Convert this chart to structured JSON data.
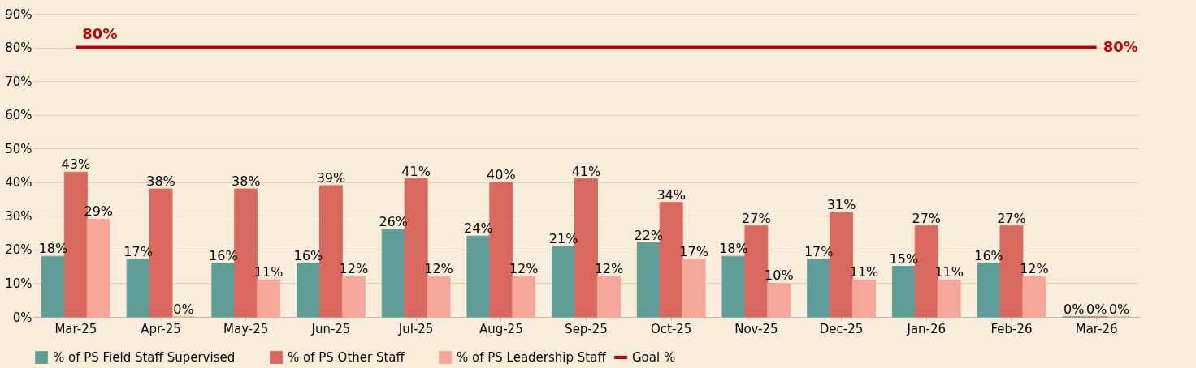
{
  "chart_data": {
    "type": "bar",
    "categories": [
      "Mar-25",
      "Apr-25",
      "May-25",
      "Jun-25",
      "Jul-25",
      "Aug-25",
      "Sep-25",
      "Oct-25",
      "Nov-25",
      "Dec-25",
      "Jan-26",
      "Feb-26",
      "Mar-26"
    ],
    "series": [
      {
        "name": "% of PS Field Staff Supervised",
        "color": "#5f9e98",
        "values": [
          18,
          17,
          16,
          16,
          26,
          24,
          21,
          22,
          18,
          17,
          15,
          16,
          0
        ],
        "value_labels": [
          "18%",
          "17%",
          "16%",
          "16%",
          "26%",
          "24%",
          "21%",
          "22%",
          "18%",
          "17%",
          "15%",
          "16%",
          "0%"
        ]
      },
      {
        "name": "% of PS Other Staff",
        "color": "#d9695f",
        "values": [
          43,
          38,
          38,
          39,
          41,
          40,
          41,
          34,
          27,
          31,
          27,
          27,
          0
        ],
        "value_labels": [
          "43%",
          "38%",
          "38%",
          "39%",
          "41%",
          "40%",
          "41%",
          "34%",
          "27%",
          "31%",
          "27%",
          "27%",
          "0%"
        ]
      },
      {
        "name": "% of PS Leadership Staff",
        "color": "#f4a799",
        "values": [
          29,
          0,
          11,
          12,
          12,
          12,
          12,
          17,
          10,
          11,
          11,
          12,
          0
        ],
        "value_labels": [
          "29%",
          "0%",
          "11%",
          "12%",
          "12%",
          "12%",
          "12%",
          "17%",
          "10%",
          "11%",
          "11%",
          "12%",
          "0%"
        ]
      },
      {
        "name": "Goal %",
        "type": "line",
        "color": "#c00000",
        "values": [
          80,
          80,
          80,
          80,
          80,
          80,
          80,
          80,
          80,
          80,
          80,
          80,
          80
        ],
        "value_labels": [
          "80%",
          null,
          null,
          null,
          null,
          null,
          null,
          null,
          null,
          null,
          null,
          null,
          "80%"
        ]
      }
    ],
    "ylim": [
      0,
      90
    ],
    "yticks": [
      {
        "value": 0,
        "label": "0%"
      },
      {
        "value": 10,
        "label": "10%"
      },
      {
        "value": 20,
        "label": "20%"
      },
      {
        "value": 30,
        "label": "30%"
      },
      {
        "value": 40,
        "label": "40%"
      },
      {
        "value": 50,
        "label": "50%"
      },
      {
        "value": 60,
        "label": "60%"
      },
      {
        "value": 70,
        "label": "70%"
      },
      {
        "value": 80,
        "label": "80%"
      },
      {
        "value": 90,
        "label": "90%"
      }
    ],
    "grid": "y",
    "legend": "bottom"
  }
}
